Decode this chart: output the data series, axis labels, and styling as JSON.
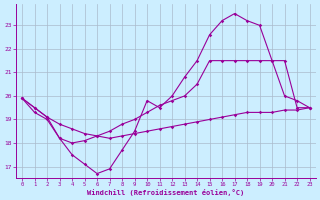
{
  "xlabel": "Windchill (Refroidissement éolien,°C)",
  "x_ticks": [
    0,
    1,
    2,
    3,
    4,
    5,
    6,
    7,
    8,
    9,
    10,
    11,
    12,
    13,
    14,
    15,
    16,
    17,
    18,
    19,
    20,
    21,
    22,
    23
  ],
  "ylim": [
    16.5,
    23.9
  ],
  "xlim": [
    -0.5,
    23.5
  ],
  "yticks": [
    17,
    18,
    19,
    20,
    21,
    22,
    23
  ],
  "bg_color": "#cceeff",
  "line_color": "#990099",
  "grid_color": "#aabbcc",
  "line1_x": [
    0,
    1,
    2,
    3,
    4,
    5,
    6,
    7,
    8,
    9,
    10,
    11,
    12,
    13,
    14,
    15,
    16,
    17,
    18,
    19,
    20,
    21,
    22,
    23
  ],
  "line1_y": [
    19.9,
    19.5,
    19.1,
    18.8,
    18.6,
    18.4,
    18.3,
    18.2,
    18.3,
    18.4,
    18.5,
    18.6,
    18.7,
    18.8,
    18.9,
    19.0,
    19.1,
    19.2,
    19.3,
    19.3,
    19.3,
    19.4,
    19.4,
    19.5
  ],
  "line2_x": [
    0,
    1,
    2,
    3,
    4,
    5,
    6,
    7,
    8,
    9,
    10,
    11,
    12,
    13,
    14,
    15,
    16,
    17,
    18,
    19,
    20,
    21,
    22,
    23
  ],
  "line2_y": [
    19.9,
    19.5,
    19.1,
    18.2,
    18.0,
    18.1,
    18.3,
    18.5,
    18.8,
    19.0,
    19.3,
    19.6,
    19.8,
    20.0,
    20.5,
    21.5,
    21.5,
    21.5,
    21.5,
    21.5,
    21.5,
    21.5,
    19.5,
    19.5
  ],
  "line3_x": [
    0,
    1,
    2,
    3,
    4,
    5,
    6,
    7,
    8,
    9,
    10,
    11,
    12,
    13,
    14,
    15,
    16,
    17,
    18,
    19,
    20,
    21,
    22,
    23
  ],
  "line3_y": [
    19.9,
    19.3,
    19.0,
    18.2,
    17.5,
    17.1,
    16.7,
    16.9,
    17.7,
    18.5,
    19.8,
    19.5,
    20.0,
    20.8,
    21.5,
    22.6,
    23.2,
    23.5,
    23.2,
    23.0,
    21.5,
    20.0,
    19.8,
    19.5
  ]
}
